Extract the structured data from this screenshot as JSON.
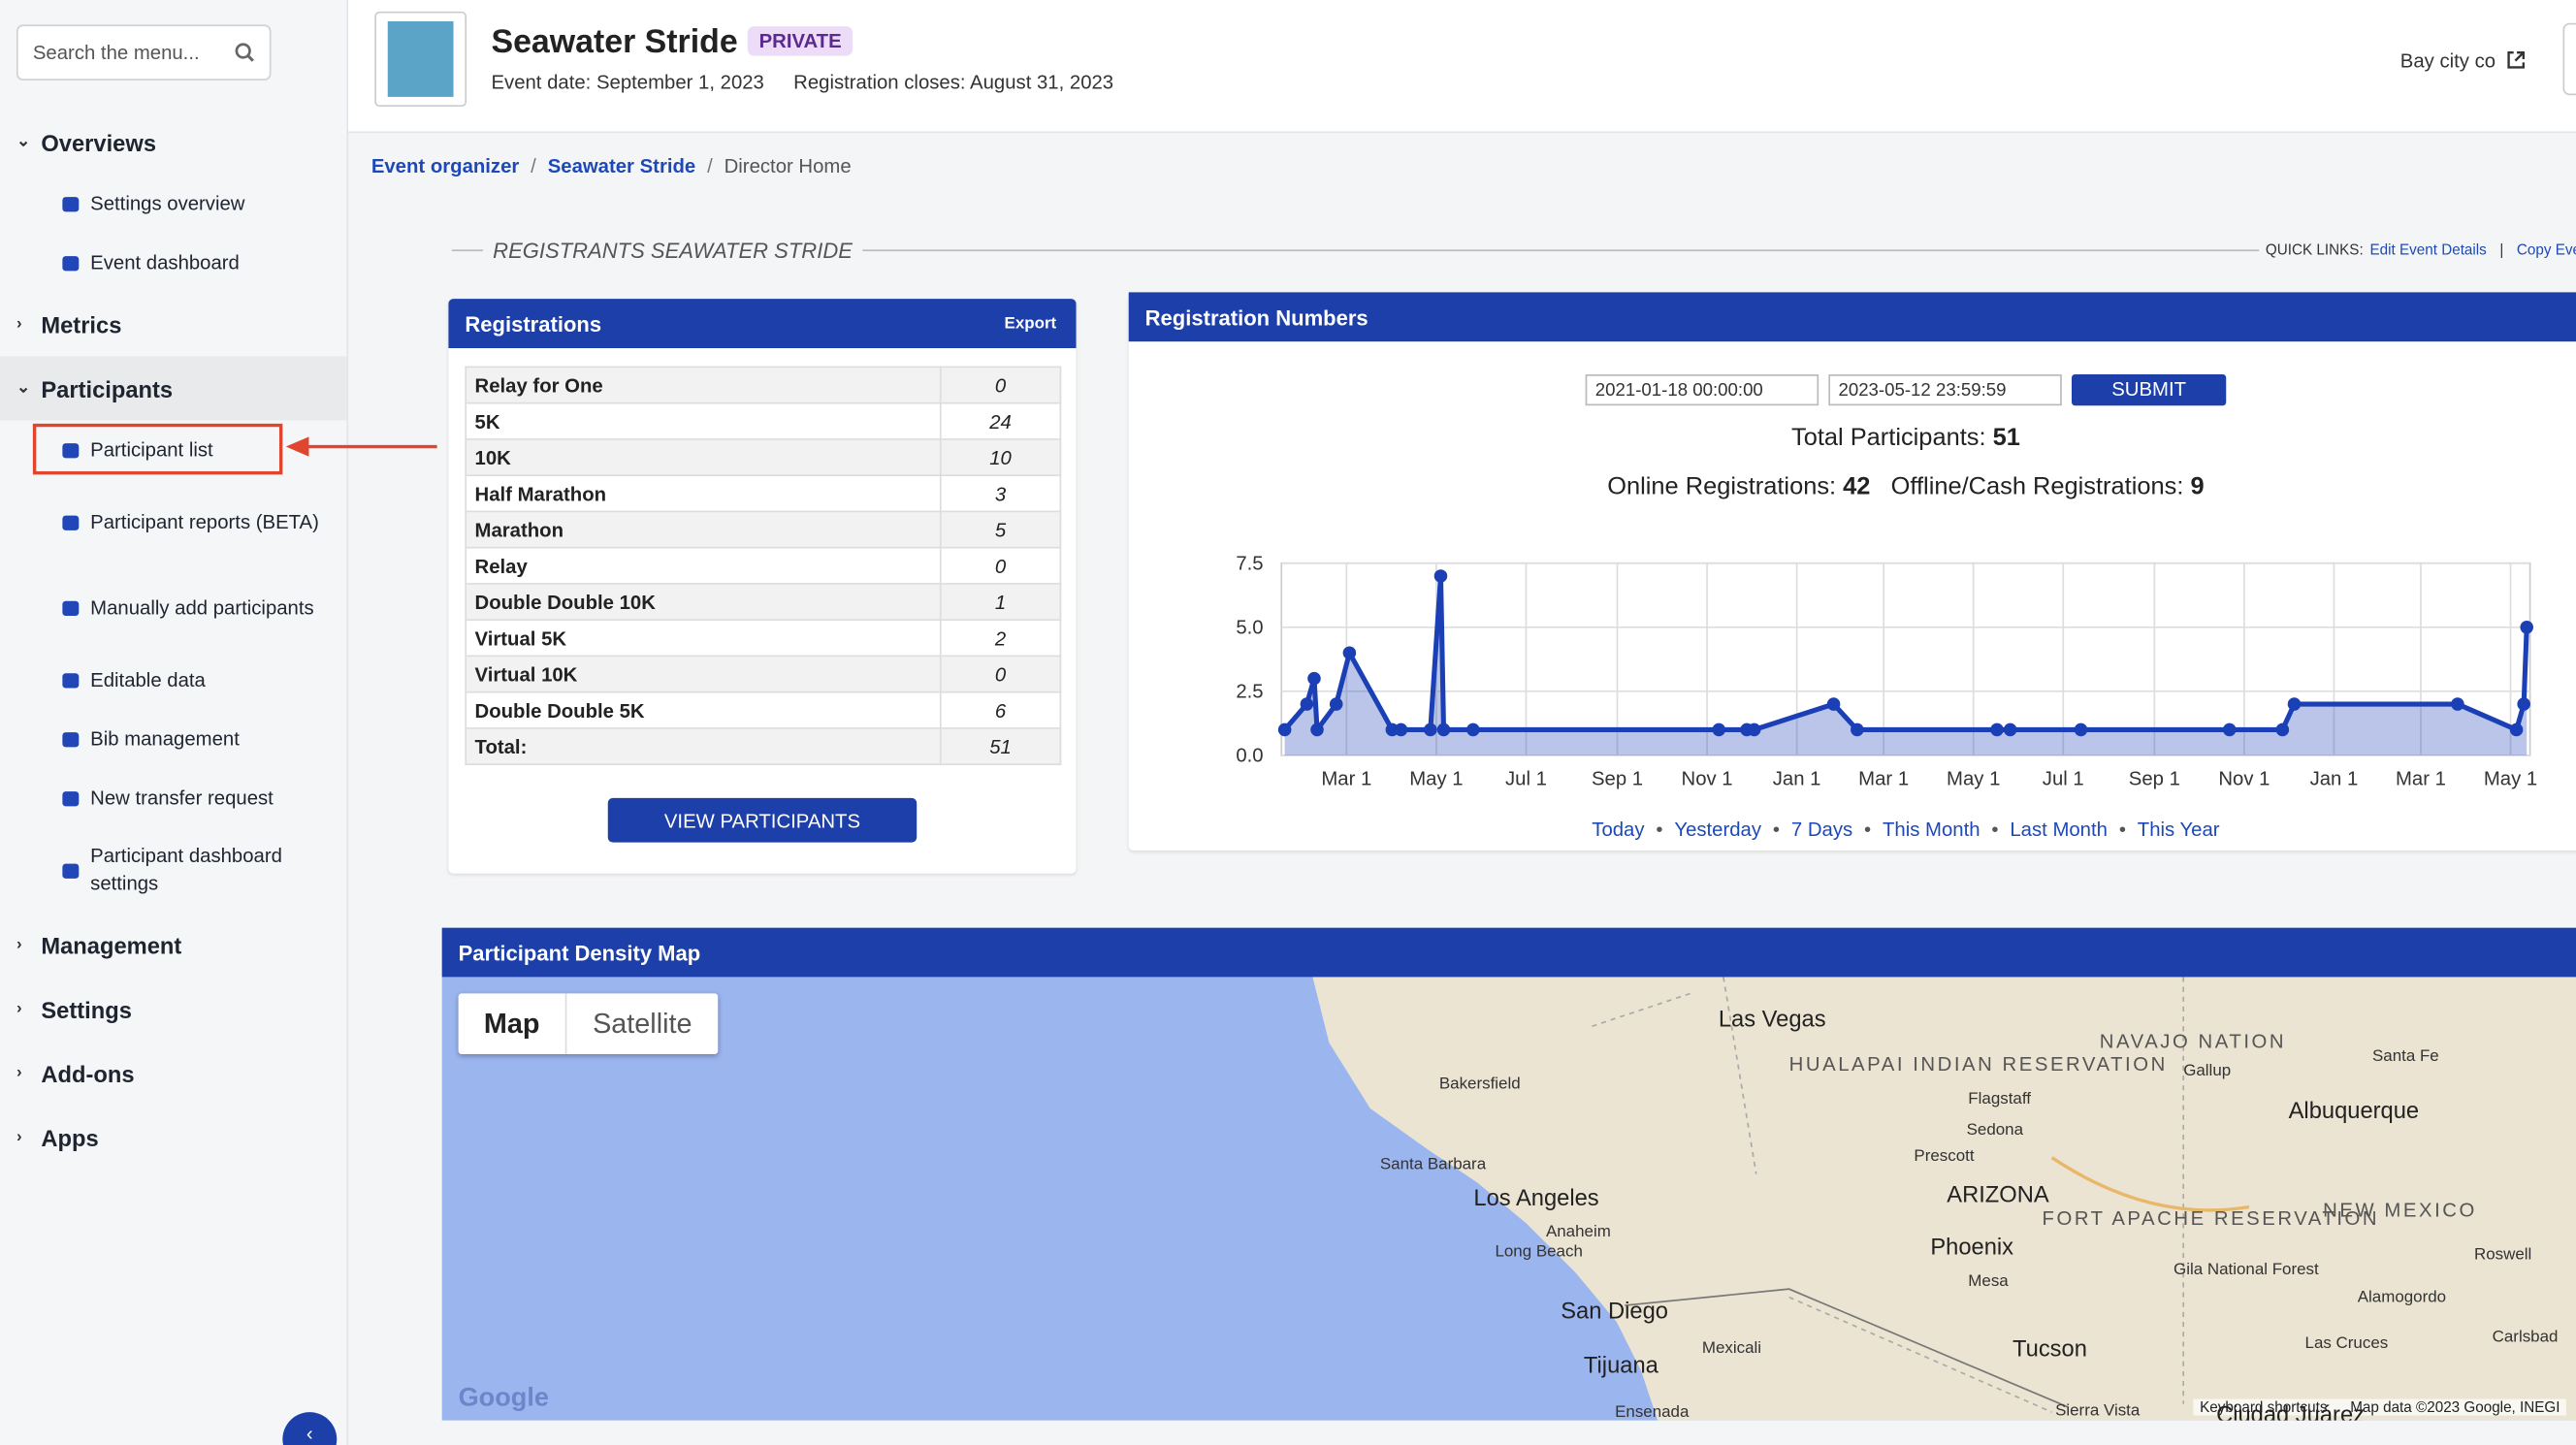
{
  "sidebar": {
    "search_placeholder": "Search the menu...",
    "sections": [
      {
        "title": "Overviews",
        "expanded": true,
        "items": [
          "Settings overview",
          "Event dashboard"
        ]
      },
      {
        "title": "Metrics",
        "expanded": false
      },
      {
        "title": "Participants",
        "expanded": true,
        "active": true,
        "items": [
          "Participant list",
          "Participant reports (BETA)",
          "Manually add participants",
          "Editable data",
          "Bib management",
          "New transfer request",
          "Participant dashboard settings"
        ]
      },
      {
        "title": "Management",
        "expanded": false
      },
      {
        "title": "Settings",
        "expanded": false
      },
      {
        "title": "Add-ons",
        "expanded": false
      },
      {
        "title": "Apps",
        "expanded": false
      }
    ]
  },
  "header": {
    "title": "Seawater Stride",
    "badge": "PRIVATE",
    "event_date": "Event date: September 1, 2023",
    "registration_closes": "Registration closes: August 31, 2023",
    "organization": "Bay city co"
  },
  "breadcrumbs": [
    "Event organizer",
    "Seawater Stride",
    "Director Home"
  ],
  "section_heading": "REGISTRANTS SEAWATER STRIDE",
  "quick_links": {
    "label": "QUICK LINKS:",
    "links": [
      "Edit Event Details",
      "Copy Event"
    ]
  },
  "registrations": {
    "title": "Registrations",
    "export": "Export",
    "rows": [
      [
        "Relay for One",
        0
      ],
      [
        "5K",
        24
      ],
      [
        "10K",
        10
      ],
      [
        "Half Marathon",
        3
      ],
      [
        "Marathon",
        5
      ],
      [
        "Relay",
        0
      ],
      [
        "Double Double 10K",
        1
      ],
      [
        "Virtual 5K",
        2
      ],
      [
        "Virtual 10K",
        0
      ],
      [
        "Double Double 5K",
        6
      ],
      [
        "Total:",
        51
      ]
    ],
    "button": "VIEW PARTICIPANTS"
  },
  "registration_numbers": {
    "title": "Registration Numbers",
    "start": "2021-01-18 00:00:00",
    "end": "2023-05-12 23:59:59",
    "submit": "SUBMIT",
    "total": {
      "label": "Total Participants:",
      "value": 51
    },
    "online": {
      "label": "Online Registrations:",
      "value": 42
    },
    "offline": {
      "label": "Offline/Cash Registrations:",
      "value": 9
    },
    "ranges": [
      "Today",
      "Yesterday",
      "7 Days",
      "This Month",
      "Last Month",
      "This Year"
    ]
  },
  "chart_data": {
    "type": "line",
    "color": "#1b3fb5",
    "grid": true,
    "area": true,
    "x": [
      "2021-01-18",
      "2021-02-02",
      "2021-02-07",
      "2021-02-09",
      "2021-02-22",
      "2021-03-03",
      "2021-04-01",
      "2021-04-07",
      "2021-04-27",
      "2021-05-04",
      "2021-05-06",
      "2021-05-26",
      "2021-11-09",
      "2021-11-28",
      "2021-12-03",
      "2022-01-26",
      "2022-02-11",
      "2022-05-17",
      "2022-05-26",
      "2022-07-13",
      "2022-10-22",
      "2022-11-27",
      "2022-12-05",
      "2023-03-26",
      "2023-05-05",
      "2023-05-10",
      "2023-05-12"
    ],
    "values": [
      1,
      2,
      3,
      1,
      2,
      4,
      1,
      1,
      1,
      7,
      1,
      1,
      1,
      1,
      1,
      2,
      1,
      1,
      1,
      1,
      1,
      1,
      2,
      2,
      1,
      2,
      5
    ],
    "xlim": [
      "2021-01-18",
      "2023-05-12"
    ],
    "xticks": [
      {
        "value": "2021-03-01",
        "label": "Mar 1"
      },
      {
        "value": "2021-05-01",
        "label": "May 1"
      },
      {
        "value": "2021-07-01",
        "label": "Jul 1"
      },
      {
        "value": "2021-09-01",
        "label": "Sep 1"
      },
      {
        "value": "2021-11-01",
        "label": "Nov 1"
      },
      {
        "value": "2022-01-01",
        "label": "Jan 1"
      },
      {
        "value": "2022-03-01",
        "label": "Mar 1"
      },
      {
        "value": "2022-05-01",
        "label": "May 1"
      },
      {
        "value": "2022-07-01",
        "label": "Jul 1"
      },
      {
        "value": "2022-09-01",
        "label": "Sep 1"
      },
      {
        "value": "2022-11-01",
        "label": "Nov 1"
      },
      {
        "value": "2023-01-01",
        "label": "Jan 1"
      },
      {
        "value": "2023-03-01",
        "label": "Mar 1"
      },
      {
        "value": "2023-05-01",
        "label": "May 1"
      }
    ],
    "ylim": [
      0,
      7.5
    ],
    "yticks": [
      {
        "value": 0,
        "label": "0.0"
      },
      2.5,
      {
        "value": 5,
        "label": "5.0"
      },
      7.5
    ]
  },
  "map": {
    "title": "Participant Density Map",
    "buttons": [
      "Map",
      "Satellite"
    ],
    "logo": "Google",
    "footer": [
      "Keyboard shortcuts",
      "Map data ©2023 Google, INEGI"
    ],
    "labels": [
      "Las Vegas",
      "Bakersfield",
      "Santa Barbara",
      "Los Angeles",
      "Anaheim",
      "Long Beach",
      "San Diego",
      "Tijuana",
      "Mexicali",
      "Ensenada",
      "HUALAPAI INDIAN RESERVATION",
      "Flagstaff",
      "Sedona",
      "Prescott",
      "ARIZONA",
      "Phoenix",
      "Mesa",
      "Tucson",
      "Sierra Vista",
      "FORT APACHE RESERVATION",
      "NAVAJO NATION",
      "Gallup",
      "Santa Fe",
      "Albuquerque",
      "NEW MEXICO",
      "Gila National Forest",
      "Roswell",
      "Alamogordo",
      "Las Cruces",
      "Carlsbad",
      "Ciudad Juárez"
    ]
  }
}
